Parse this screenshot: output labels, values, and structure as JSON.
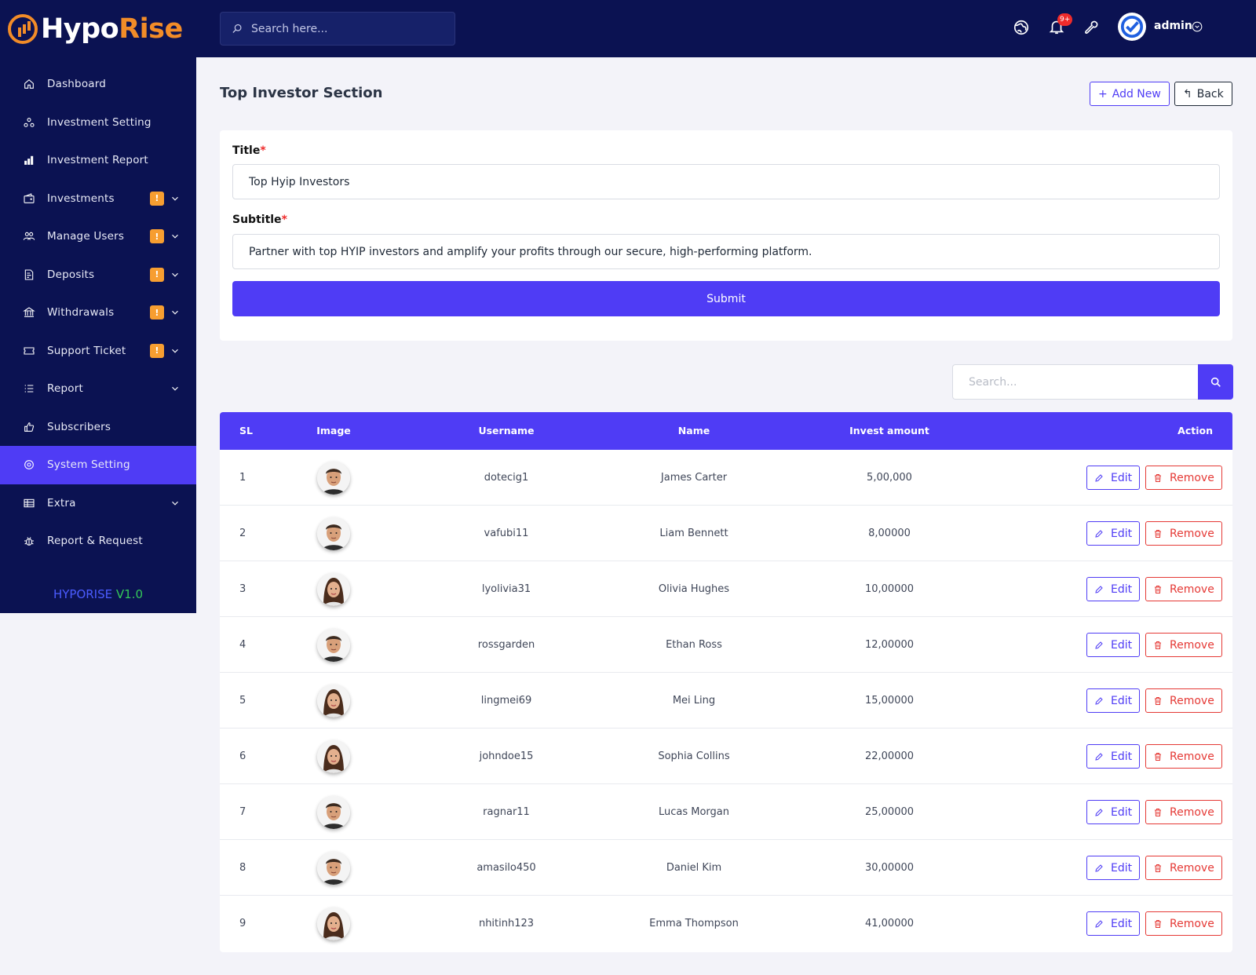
{
  "brand": {
    "name_part1": "Hypo",
    "name_part2": "Rise",
    "version_name": "HYPORISE",
    "version_number": "V1.0"
  },
  "sidebar": {
    "items": [
      {
        "label": "Dashboard",
        "icon": "home-icon",
        "badge": null,
        "chevron": false,
        "active": false
      },
      {
        "label": "Investment Setting",
        "icon": "settings-nodes-icon",
        "badge": null,
        "chevron": false,
        "active": false
      },
      {
        "label": "Investment Report",
        "icon": "bar-chart-icon",
        "badge": null,
        "chevron": false,
        "active": false
      },
      {
        "label": "Investments",
        "icon": "wallet-icon",
        "badge": "!",
        "chevron": true,
        "active": false
      },
      {
        "label": "Manage Users",
        "icon": "users-icon",
        "badge": "!",
        "chevron": true,
        "active": false
      },
      {
        "label": "Deposits",
        "icon": "receipt-icon",
        "badge": "!",
        "chevron": true,
        "active": false
      },
      {
        "label": "Withdrawals",
        "icon": "bank-icon",
        "badge": "!",
        "chevron": true,
        "active": false
      },
      {
        "label": "Support Ticket",
        "icon": "ticket-icon",
        "badge": "!",
        "chevron": true,
        "active": false
      },
      {
        "label": "Report",
        "icon": "list-icon",
        "badge": null,
        "chevron": true,
        "active": false
      },
      {
        "label": "Subscribers",
        "icon": "thumbs-up-icon",
        "badge": null,
        "chevron": false,
        "active": false
      },
      {
        "label": "System Setting",
        "icon": "gear-icon",
        "badge": null,
        "chevron": false,
        "active": true
      },
      {
        "label": "Extra",
        "icon": "table-icon",
        "badge": null,
        "chevron": true,
        "active": false
      },
      {
        "label": "Report & Request",
        "icon": "bug-icon",
        "badge": null,
        "chevron": false,
        "active": false
      }
    ]
  },
  "topbar": {
    "search_placeholder": "Search here...",
    "notification_count": "9+",
    "username": "admin"
  },
  "page": {
    "title": "Top Investor Section",
    "add_new_label": "Add New",
    "back_label": "Back"
  },
  "form": {
    "title_label": "Title",
    "title_value": "Top Hyip Investors",
    "subtitle_label": "Subtitle",
    "subtitle_value": "Partner with top HYIP investors and amplify your profits through our secure, high-performing platform.",
    "required_mark": "*",
    "submit_label": "Submit"
  },
  "table_search": {
    "placeholder": "Search..."
  },
  "table": {
    "headers": [
      "SL",
      "Image",
      "Username",
      "Name",
      "Invest amount",
      "Action"
    ],
    "edit_label": "Edit",
    "remove_label": "Remove",
    "rows": [
      {
        "sl": "1",
        "username": "dotecig1",
        "name": "James Carter",
        "amount": "5,00,000",
        "avatar": "male-avatar-icon"
      },
      {
        "sl": "2",
        "username": "vafubi11",
        "name": "Liam Bennett",
        "amount": "8,00000",
        "avatar": "male-avatar-icon"
      },
      {
        "sl": "3",
        "username": "lyolivia31",
        "name": "Olivia Hughes",
        "amount": "10,00000",
        "avatar": "female-avatar-icon"
      },
      {
        "sl": "4",
        "username": "rossgarden",
        "name": "Ethan Ross",
        "amount": "12,00000",
        "avatar": "male-avatar-icon"
      },
      {
        "sl": "5",
        "username": "lingmei69",
        "name": "Mei Ling",
        "amount": "15,00000",
        "avatar": "female-avatar-icon"
      },
      {
        "sl": "6",
        "username": "johndoe15",
        "name": "Sophia Collins",
        "amount": "22,00000",
        "avatar": "female-avatar-icon"
      },
      {
        "sl": "7",
        "username": "ragnar11",
        "name": "Lucas Morgan",
        "amount": "25,00000",
        "avatar": "male-avatar-icon"
      },
      {
        "sl": "8",
        "username": "amasilo450",
        "name": "Daniel Kim",
        "amount": "30,00000",
        "avatar": "male-avatar-icon"
      },
      {
        "sl": "9",
        "username": "nhitinh123",
        "name": "Emma Thompson",
        "amount": "41,00000",
        "avatar": "female-avatar-icon"
      }
    ]
  },
  "colors": {
    "sidebar_bg": "#0b1252",
    "accent": "#4f3cf5",
    "brand_orange": "#f28c28",
    "danger": "#e53935",
    "badge": "#f79e31"
  }
}
